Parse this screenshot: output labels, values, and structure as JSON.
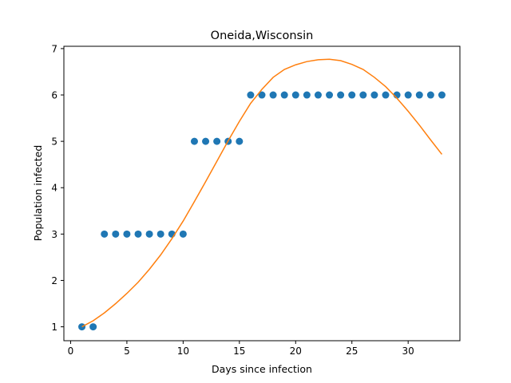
{
  "chart_data": {
    "type": "scatter",
    "title": "Oneida,Wisconsin",
    "xlabel": "Days since infection",
    "ylabel": "Population infected",
    "xlim": [
      -0.6,
      34.6
    ],
    "ylim": [
      0.7,
      7.05
    ],
    "xticks": [
      0,
      5,
      10,
      15,
      20,
      25,
      30
    ],
    "yticks": [
      1,
      2,
      3,
      4,
      5,
      6,
      7
    ],
    "grid": false,
    "legend": "none",
    "series": [
      {
        "kind": "scatter",
        "color": "#1f77b4",
        "x": [
          1,
          2,
          3,
          4,
          5,
          6,
          7,
          8,
          9,
          10,
          11,
          12,
          13,
          14,
          15,
          16,
          17,
          18,
          19,
          20,
          21,
          22,
          23,
          24,
          25,
          26,
          27,
          28,
          29,
          30,
          31,
          32,
          33
        ],
        "y": [
          1,
          1,
          3,
          3,
          3,
          3,
          3,
          3,
          3,
          3,
          5,
          5,
          5,
          5,
          5,
          6,
          6,
          6,
          6,
          6,
          6,
          6,
          6,
          6,
          6,
          6,
          6,
          6,
          6,
          6,
          6,
          6,
          6
        ]
      },
      {
        "kind": "line",
        "color": "#ff7f0e",
        "x": [
          1,
          2,
          3,
          4,
          5,
          6,
          7,
          8,
          9,
          10,
          11,
          12,
          13,
          14,
          15,
          16,
          17,
          18,
          19,
          20,
          21,
          22,
          23,
          24,
          25,
          26,
          27,
          28,
          29,
          30,
          31,
          32,
          33
        ],
        "y": [
          1.0,
          1.13,
          1.3,
          1.5,
          1.72,
          1.96,
          2.24,
          2.55,
          2.9,
          3.28,
          3.7,
          4.13,
          4.57,
          5.01,
          5.43,
          5.82,
          6.12,
          6.38,
          6.55,
          6.65,
          6.72,
          6.76,
          6.77,
          6.74,
          6.66,
          6.55,
          6.38,
          6.18,
          5.93,
          5.65,
          5.35,
          5.03,
          4.72
        ]
      }
    ]
  }
}
